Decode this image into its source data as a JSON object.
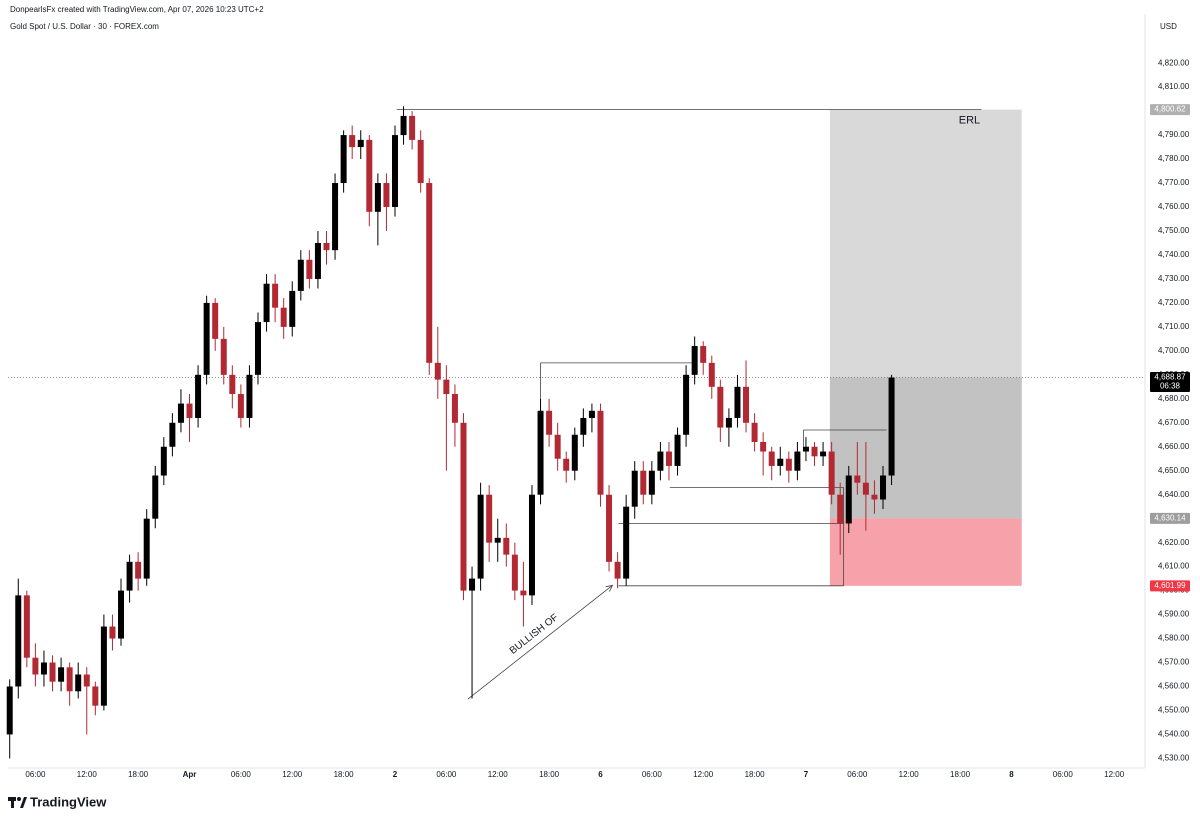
{
  "chart_data": {
    "type": "candlestick",
    "header": "DonpearlsFx created with TradingView.com, Apr 07, 2026 10:23 UTC+2",
    "title": "Gold Spot / U.S. Dollar · 30 · FOREX.com",
    "currency": "USD",
    "brand": "TradingView",
    "up_color": "#000000",
    "down_color": "#b22833",
    "ylim": [
      4526,
      4833
    ],
    "yticks": [
      {
        "value": 4530,
        "label": "4,530.00"
      },
      {
        "value": 4540,
        "label": "4,540.00"
      },
      {
        "value": 4550,
        "label": "4,550.00"
      },
      {
        "value": 4560,
        "label": "4,560.00"
      },
      {
        "value": 4570,
        "label": "4,570.00"
      },
      {
        "value": 4580,
        "label": "4,580.00"
      },
      {
        "value": 4590,
        "label": "4,590.00"
      },
      {
        "value": 4600,
        "label": "4,600.00"
      },
      {
        "value": 4610,
        "label": "4,610.00"
      },
      {
        "value": 4620,
        "label": "4,620.00"
      },
      {
        "value": 4630,
        "label": "4,630.00"
      },
      {
        "value": 4640,
        "label": "4,640.00"
      },
      {
        "value": 4650,
        "label": "4,650.00"
      },
      {
        "value": 4660,
        "label": "4,660.00"
      },
      {
        "value": 4670,
        "label": "4,670.00"
      },
      {
        "value": 4680,
        "label": "4,680.00"
      },
      {
        "value": 4690,
        "label": "4,690.00"
      },
      {
        "value": 4700,
        "label": "4,700.00"
      },
      {
        "value": 4710,
        "label": "4,710.00"
      },
      {
        "value": 4720,
        "label": "4,720.00"
      },
      {
        "value": 4730,
        "label": "4,730.00"
      },
      {
        "value": 4740,
        "label": "4,740.00"
      },
      {
        "value": 4750,
        "label": "4,750.00"
      },
      {
        "value": 4760,
        "label": "4,760.00"
      },
      {
        "value": 4770,
        "label": "4,770.00"
      },
      {
        "value": 4780,
        "label": "4,780.00"
      },
      {
        "value": 4790,
        "label": "4,790.00"
      },
      {
        "value": 4810,
        "label": "4,810.00"
      },
      {
        "value": 4820,
        "label": "4,820.00"
      }
    ],
    "xlim": [
      2.8,
      135.6
    ],
    "xticks": [
      {
        "value": 6,
        "label": "06:00"
      },
      {
        "value": 12,
        "label": "12:00"
      },
      {
        "value": 18,
        "label": "18:00"
      },
      {
        "value": 24,
        "label": "Apr"
      },
      {
        "value": 30,
        "label": "06:00"
      },
      {
        "value": 36,
        "label": "12:00"
      },
      {
        "value": 42,
        "label": "18:00"
      },
      {
        "value": 48,
        "label": "2"
      },
      {
        "value": 54,
        "label": "06:00"
      },
      {
        "value": 60,
        "label": "12:00"
      },
      {
        "value": 66,
        "label": "18:00"
      },
      {
        "value": 72,
        "label": "6"
      },
      {
        "value": 78,
        "label": "06:00"
      },
      {
        "value": 84,
        "label": "12:00"
      },
      {
        "value": 90,
        "label": "18:00"
      },
      {
        "value": 96,
        "label": "7"
      },
      {
        "value": 102,
        "label": "06:00"
      },
      {
        "value": 108,
        "label": "12:00"
      },
      {
        "value": 114,
        "label": "18:00"
      },
      {
        "value": 120,
        "label": "8"
      },
      {
        "value": 126,
        "label": "06:00"
      },
      {
        "value": 132,
        "label": "12:00"
      }
    ],
    "x": [
      3,
      4,
      5,
      6,
      7,
      8,
      9,
      10,
      11,
      12,
      13,
      14,
      15,
      16,
      17,
      18,
      19,
      20,
      21,
      22,
      23,
      24,
      25,
      26,
      27,
      28,
      29,
      30,
      31,
      32,
      33,
      34,
      35,
      36,
      37,
      38,
      39,
      40,
      41,
      42,
      43,
      44,
      45,
      46,
      47,
      48,
      49,
      50,
      51,
      52,
      53,
      54,
      55,
      56,
      57,
      58,
      59,
      60,
      61,
      62,
      63,
      64,
      65,
      66,
      67,
      68,
      69,
      70,
      71,
      72,
      73,
      74,
      75,
      76,
      77,
      78,
      79,
      80,
      81,
      82,
      83,
      84,
      85,
      86,
      87,
      88,
      89,
      90,
      91,
      92,
      93,
      94,
      95,
      96,
      97,
      98,
      99,
      100,
      101,
      102,
      103,
      104,
      105,
      106
    ],
    "candles": [
      [
        4540,
        4563,
        4530,
        4560
      ],
      [
        4560,
        4605,
        4555,
        4598
      ],
      [
        4598,
        4600,
        4568,
        4572
      ],
      [
        4572,
        4578,
        4560,
        4565
      ],
      [
        4565,
        4575,
        4560,
        4570
      ],
      [
        4570,
        4573,
        4558,
        4562
      ],
      [
        4562,
        4572,
        4558,
        4568
      ],
      [
        4568,
        4570,
        4552,
        4558
      ],
      [
        4558,
        4570,
        4555,
        4565
      ],
      [
        4565,
        4568,
        4540,
        4560
      ],
      [
        4560,
        4562,
        4548,
        4552
      ],
      [
        4552,
        4590,
        4550,
        4585
      ],
      [
        4585,
        4590,
        4575,
        4580
      ],
      [
        4580,
        4605,
        4577,
        4600
      ],
      [
        4600,
        4615,
        4595,
        4612
      ],
      [
        4612,
        4616,
        4600,
        4605
      ],
      [
        4605,
        4634,
        4602,
        4630
      ],
      [
        4630,
        4652,
        4626,
        4648
      ],
      [
        4648,
        4664,
        4644,
        4660
      ],
      [
        4660,
        4674,
        4656,
        4670
      ],
      [
        4670,
        4684,
        4666,
        4678
      ],
      [
        4678,
        4682,
        4662,
        4672
      ],
      [
        4672,
        4694,
        4668,
        4690
      ],
      [
        4690,
        4723,
        4686,
        4720
      ],
      [
        4720,
        4722,
        4700,
        4705
      ],
      [
        4705,
        4710,
        4686,
        4690
      ],
      [
        4690,
        4694,
        4676,
        4682
      ],
      [
        4682,
        4686,
        4668,
        4672
      ],
      [
        4672,
        4694,
        4668,
        4690
      ],
      [
        4690,
        4716,
        4686,
        4712
      ],
      [
        4712,
        4732,
        4708,
        4728
      ],
      [
        4728,
        4732,
        4712,
        4718
      ],
      [
        4718,
        4722,
        4705,
        4710
      ],
      [
        4710,
        4729,
        4706,
        4725
      ],
      [
        4725,
        4742,
        4721,
        4738
      ],
      [
        4738,
        4742,
        4726,
        4730
      ],
      [
        4730,
        4750,
        4726,
        4745
      ],
      [
        4745,
        4750,
        4736,
        4742
      ],
      [
        4742,
        4774,
        4738,
        4770
      ],
      [
        4770,
        4792,
        4766,
        4790
      ],
      [
        4790,
        4794,
        4780,
        4785
      ],
      [
        4785,
        4792,
        4780,
        4788
      ],
      [
        4788,
        4790,
        4752,
        4758
      ],
      [
        4758,
        4774,
        4744,
        4770
      ],
      [
        4770,
        4774,
        4750,
        4760
      ],
      [
        4760,
        4794,
        4756,
        4790
      ],
      [
        4790,
        4802,
        4786,
        4798
      ],
      [
        4798,
        4800,
        4784,
        4788
      ],
      [
        4788,
        4792,
        4766,
        4770
      ],
      [
        4770,
        4772,
        4690,
        4695
      ],
      [
        4695,
        4710,
        4680,
        4688
      ],
      [
        4688,
        4694,
        4650,
        4682
      ],
      [
        4682,
        4686,
        4660,
        4670
      ],
      [
        4670,
        4674,
        4596,
        4600
      ],
      [
        4600,
        4610,
        4555,
        4605
      ],
      [
        4605,
        4645,
        4600,
        4640
      ],
      [
        4640,
        4644,
        4612,
        4620
      ],
      [
        4620,
        4630,
        4612,
        4622
      ],
      [
        4622,
        4628,
        4610,
        4615
      ],
      [
        4615,
        4620,
        4596,
        4600
      ],
      [
        4600,
        4612,
        4585,
        4598
      ],
      [
        4598,
        4644,
        4594,
        4640
      ],
      [
        4640,
        4680,
        4636,
        4675
      ],
      [
        4675,
        4680,
        4660,
        4665
      ],
      [
        4665,
        4670,
        4650,
        4655
      ],
      [
        4655,
        4658,
        4645,
        4650
      ],
      [
        4650,
        4668,
        4646,
        4665
      ],
      [
        4665,
        4676,
        4660,
        4672
      ],
      [
        4672,
        4678,
        4666,
        4675
      ],
      [
        4675,
        4678,
        4635,
        4640
      ],
      [
        4640,
        4644,
        4608,
        4612
      ],
      [
        4612,
        4616,
        4601,
        4605
      ],
      [
        4605,
        4640,
        4602,
        4635
      ],
      [
        4635,
        4654,
        4630,
        4650
      ],
      [
        4650,
        4654,
        4636,
        4640
      ],
      [
        4640,
        4654,
        4636,
        4650
      ],
      [
        4650,
        4662,
        4646,
        4658
      ],
      [
        4658,
        4662,
        4646,
        4652
      ],
      [
        4652,
        4668,
        4648,
        4665
      ],
      [
        4665,
        4694,
        4660,
        4690
      ],
      [
        4690,
        4706,
        4686,
        4702
      ],
      [
        4702,
        4704,
        4690,
        4695
      ],
      [
        4695,
        4698,
        4680,
        4685
      ],
      [
        4685,
        4688,
        4662,
        4668
      ],
      [
        4668,
        4676,
        4660,
        4672
      ],
      [
        4672,
        4690,
        4668,
        4685
      ],
      [
        4685,
        4696,
        4666,
        4670
      ],
      [
        4670,
        4674,
        4658,
        4662
      ],
      [
        4662,
        4666,
        4648,
        4658
      ],
      [
        4658,
        4660,
        4646,
        4652
      ],
      [
        4652,
        4660,
        4648,
        4655
      ],
      [
        4655,
        4658,
        4645,
        4650
      ],
      [
        4650,
        4662,
        4646,
        4658
      ],
      [
        4658,
        4664,
        4654,
        4660
      ],
      [
        4660,
        4662,
        4652,
        4656
      ],
      [
        4656,
        4662,
        4652,
        4658
      ],
      [
        4658,
        4662,
        4636,
        4640
      ],
      [
        4640,
        4645,
        4615,
        4628
      ],
      [
        4628,
        4652,
        4624,
        4648
      ],
      [
        4648,
        4662,
        4640,
        4645
      ],
      [
        4645,
        4662,
        4625,
        4640
      ],
      [
        4640,
        4646,
        4632,
        4638
      ],
      [
        4638,
        4652,
        4634,
        4648
      ],
      [
        4648,
        4690,
        4644,
        4688.87
      ]
    ],
    "position": {
      "from": 98.8,
      "to": 121.2,
      "target": 4800.62,
      "entry": 4630.14,
      "stop": 4601.99,
      "current": 4688.87
    },
    "price_tags": [
      {
        "value": 4800.62,
        "label": "4,800.62",
        "color": "#b0b0b0"
      },
      {
        "value": 4688.87,
        "label": "4,688.87",
        "color": "#000000",
        "countdown": "06:38"
      },
      {
        "value": 4630.14,
        "label": "4,630.14",
        "color": "#9e9e9e"
      },
      {
        "value": 4601.99,
        "label": "4,601.99",
        "color": "#f23645"
      }
    ],
    "segments": [
      [
        48.2,
        4800.62,
        116.5,
        4800.62
      ],
      [
        65.0,
        4695,
        82.9,
        4695
      ],
      [
        65.0,
        4695,
        65.0,
        4680
      ],
      [
        80.1,
        4643,
        100.4,
        4643
      ],
      [
        74.1,
        4628,
        100.4,
        4628
      ],
      [
        74.1,
        4602,
        100.4,
        4602
      ],
      [
        100.4,
        4643,
        100.4,
        4602
      ],
      [
        95.7,
        4667,
        105.4,
        4667
      ],
      [
        95.7,
        4667,
        95.7,
        4660
      ]
    ],
    "erl": {
      "text": "ERL",
      "x": 115.1,
      "y": 4796
    },
    "arrow": {
      "text": "BULLISH OF",
      "from": [
        56.5,
        4554.7
      ],
      "to": [
        73.4,
        4602.2
      ]
    }
  }
}
